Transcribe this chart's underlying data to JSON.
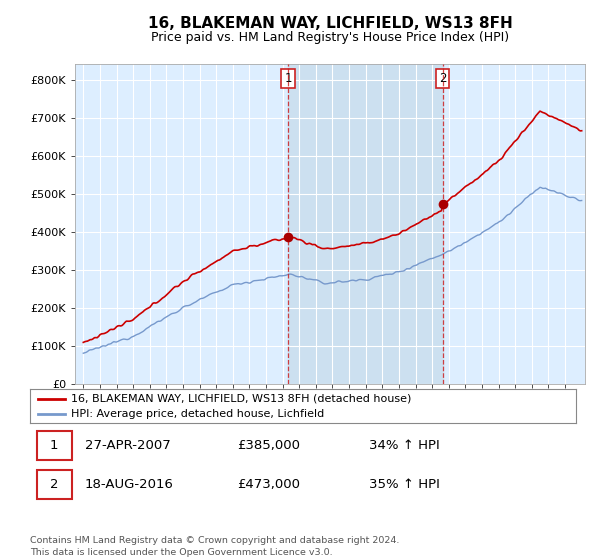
{
  "title": "16, BLAKEMAN WAY, LICHFIELD, WS13 8FH",
  "subtitle": "Price paid vs. HM Land Registry's House Price Index (HPI)",
  "ytick_values": [
    0,
    100000,
    200000,
    300000,
    400000,
    500000,
    600000,
    700000,
    800000
  ],
  "ylim": [
    0,
    840000
  ],
  "xlim_start": 1994.5,
  "xlim_end": 2025.2,
  "sale1_x": 2007.32,
  "sale1_y": 385000,
  "sale1_label": "1",
  "sale2_x": 2016.63,
  "sale2_y": 473000,
  "sale2_label": "2",
  "sale_marker_color": "#aa0000",
  "dashed_vline_color": "#cc2222",
  "hpi_line_color": "#7799cc",
  "price_line_color": "#cc0000",
  "shade_color": "#cce0f0",
  "legend_label_price": "16, BLAKEMAN WAY, LICHFIELD, WS13 8FH (detached house)",
  "legend_label_hpi": "HPI: Average price, detached house, Lichfield",
  "annotation1_date": "27-APR-2007",
  "annotation1_price": "£385,000",
  "annotation1_hpi": "34% ↑ HPI",
  "annotation2_date": "18-AUG-2016",
  "annotation2_price": "£473,000",
  "annotation2_hpi": "35% ↑ HPI",
  "footer": "Contains HM Land Registry data © Crown copyright and database right 2024.\nThis data is licensed under the Open Government Licence v3.0.",
  "plot_bg_color": "#ddeeff",
  "title_fontsize": 11,
  "subtitle_fontsize": 9
}
